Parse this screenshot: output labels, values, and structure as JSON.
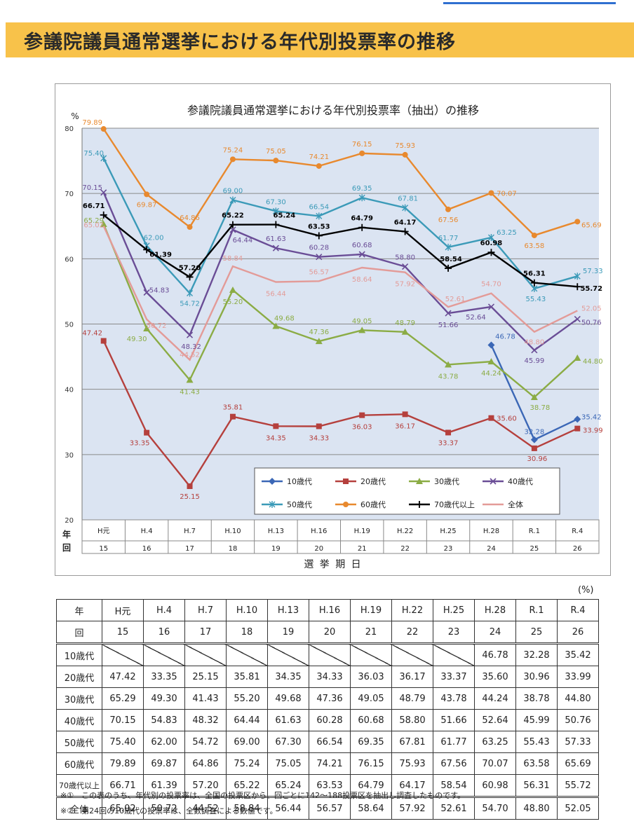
{
  "header": {
    "title": "参議院議員通常選挙における年代別投票率の推移"
  },
  "chart_data": {
    "type": "line",
    "title": "参議院議員通常選挙における年代別投票率（抽出）の推移",
    "ylabel": "%",
    "xlabel": "選 挙 期 日",
    "ylim": [
      20,
      80
    ],
    "yticks": [
      "20",
      "30",
      "40",
      "50",
      "60",
      "70",
      "80"
    ],
    "row_labels": [
      "年",
      "回"
    ],
    "categories": [
      "H元",
      "H.4",
      "H.7",
      "H.10",
      "H.13",
      "H.16",
      "H.19",
      "H.22",
      "H.25",
      "H.28",
      "R.1",
      "R.4"
    ],
    "rounds": [
      "15",
      "16",
      "17",
      "18",
      "19",
      "20",
      "21",
      "22",
      "23",
      "24",
      "25",
      "26"
    ],
    "grid": true,
    "legend_position": "bottom-right-inside",
    "series": [
      {
        "name": "10歳代",
        "color": "#3b67b6",
        "marker": "diamond",
        "values": [
          null,
          null,
          null,
          null,
          null,
          null,
          null,
          null,
          null,
          46.78,
          32.28,
          35.42
        ],
        "labels": [
          "",
          "",
          "",
          "",
          "",
          "",
          "",
          "",
          "",
          "46.78",
          "32.28",
          "35.42"
        ]
      },
      {
        "name": "20歳代",
        "color": "#b5403d",
        "marker": "square",
        "values": [
          47.42,
          33.35,
          25.15,
          35.81,
          34.35,
          34.33,
          36.03,
          36.17,
          33.37,
          35.6,
          30.96,
          33.99
        ],
        "labels": [
          "47.42",
          "33.35",
          "25.15",
          "35.81",
          "34.35",
          "34.33",
          "36.03",
          "36.17",
          "33.37",
          "35.60",
          "30.96",
          "33.99"
        ]
      },
      {
        "name": "30歳代",
        "color": "#8bac45",
        "marker": "triangle",
        "values": [
          65.29,
          49.3,
          41.43,
          55.2,
          49.68,
          47.36,
          49.05,
          48.79,
          43.78,
          44.24,
          38.78,
          44.8
        ],
        "labels": [
          "65.29",
          "49.30",
          "41.43",
          "55.20",
          "49.68",
          "47.36",
          "49.05",
          "48.79",
          "43.78",
          "44.24",
          "38.78",
          "44.80"
        ]
      },
      {
        "name": "40歳代",
        "color": "#6a4d96",
        "marker": "x",
        "values": [
          70.15,
          54.83,
          48.32,
          64.44,
          61.63,
          60.28,
          60.68,
          58.8,
          51.66,
          52.64,
          45.99,
          50.76
        ],
        "labels": [
          "70.15",
          "54.83",
          "48.32",
          "64.44",
          "61.63",
          "60.28",
          "60.68",
          "58.80",
          "51.66",
          "52.64",
          "45.99",
          "50.76"
        ]
      },
      {
        "name": "50歳代",
        "color": "#3b9ab8",
        "marker": "star",
        "values": [
          75.4,
          62.0,
          54.72,
          69.0,
          67.3,
          66.54,
          69.35,
          67.81,
          61.77,
          63.25,
          55.43,
          57.33
        ],
        "labels": [
          "75.40",
          "62.00",
          "54.72",
          "69.00",
          "67.30",
          "66.54",
          "69.35",
          "67.81",
          "61.77",
          "63.25",
          "55.43",
          "57.33"
        ]
      },
      {
        "name": "60歳代",
        "color": "#e8892e",
        "marker": "circle",
        "values": [
          79.89,
          69.87,
          64.86,
          75.24,
          75.05,
          74.21,
          76.15,
          75.93,
          67.56,
          70.07,
          63.58,
          65.69
        ],
        "labels": [
          "79.89",
          "69.87",
          "64.86",
          "75.24",
          "75.05",
          "74.21",
          "76.15",
          "75.93",
          "67.56",
          "70.07",
          "63.58",
          "65.69"
        ]
      },
      {
        "name": "70歳代以上",
        "color": "#000000",
        "marker": "plus",
        "values": [
          66.71,
          61.39,
          57.2,
          65.22,
          65.24,
          63.53,
          64.79,
          64.17,
          58.54,
          60.98,
          56.31,
          55.72
        ],
        "labels": [
          "66.71",
          "61.39",
          "57.20",
          "65.22",
          "65.24",
          "63.53",
          "64.79",
          "64.17",
          "58.54",
          "60.98",
          "56.31",
          "55.72"
        ]
      },
      {
        "name": "全体",
        "color": "#e39b98",
        "marker": "none",
        "values": [
          65.02,
          50.72,
          44.52,
          58.84,
          56.44,
          56.57,
          58.64,
          57.92,
          52.61,
          54.7,
          48.8,
          52.05
        ],
        "labels": [
          "65.02",
          "50.72",
          "44.52",
          "58.84",
          "56.44",
          "56.57",
          "58.64",
          "57.92",
          "52.61",
          "54.70",
          "48.80",
          "52.05"
        ]
      }
    ]
  },
  "table": {
    "unit": "(%)",
    "header_rows": [
      {
        "label": "年",
        "cells": [
          "H元",
          "H.4",
          "H.7",
          "H.10",
          "H.13",
          "H.16",
          "H.19",
          "H.22",
          "H.25",
          "H.28",
          "R.1",
          "R.4"
        ]
      },
      {
        "label": "回",
        "cells": [
          "15",
          "16",
          "17",
          "18",
          "19",
          "20",
          "21",
          "22",
          "23",
          "24",
          "25",
          "26"
        ]
      }
    ],
    "rows": [
      {
        "label": "10歳代",
        "cells": [
          "",
          "",
          "",
          "",
          "",
          "",
          "",
          "",
          "",
          "46.78",
          "32.28",
          "35.42"
        ]
      },
      {
        "label": "20歳代",
        "cells": [
          "47.42",
          "33.35",
          "25.15",
          "35.81",
          "34.35",
          "34.33",
          "36.03",
          "36.17",
          "33.37",
          "35.60",
          "30.96",
          "33.99"
        ]
      },
      {
        "label": "30歳代",
        "cells": [
          "65.29",
          "49.30",
          "41.43",
          "55.20",
          "49.68",
          "47.36",
          "49.05",
          "48.79",
          "43.78",
          "44.24",
          "38.78",
          "44.80"
        ]
      },
      {
        "label": "40歳代",
        "cells": [
          "70.15",
          "54.83",
          "48.32",
          "64.44",
          "61.63",
          "60.28",
          "60.68",
          "58.80",
          "51.66",
          "52.64",
          "45.99",
          "50.76"
        ]
      },
      {
        "label": "50歳代",
        "cells": [
          "75.40",
          "62.00",
          "54.72",
          "69.00",
          "67.30",
          "66.54",
          "69.35",
          "67.81",
          "61.77",
          "63.25",
          "55.43",
          "57.33"
        ]
      },
      {
        "label": "60歳代",
        "cells": [
          "79.89",
          "69.87",
          "64.86",
          "75.24",
          "75.05",
          "74.21",
          "76.15",
          "75.93",
          "67.56",
          "70.07",
          "63.58",
          "65.69"
        ]
      },
      {
        "label": "70歳代以上",
        "cells": [
          "66.71",
          "61.39",
          "57.20",
          "65.22",
          "65.24",
          "63.53",
          "64.79",
          "64.17",
          "58.54",
          "60.98",
          "56.31",
          "55.72"
        ]
      },
      {
        "label": "全体",
        "cells": [
          "65.02",
          "50.72",
          "44.52",
          "58.84",
          "56.44",
          "56.57",
          "58.64",
          "57.92",
          "52.61",
          "54.70",
          "48.80",
          "52.05"
        ]
      }
    ],
    "empty_marker": "diagonal-slash"
  },
  "notes": [
    "※①　この表のうち、年代別の投票率は、全国の投票区から、回ごとに142～188投票区を抽出し調査したものです。",
    "※②　第24回の10歳代の投票率は、全数調査による数値です。"
  ]
}
